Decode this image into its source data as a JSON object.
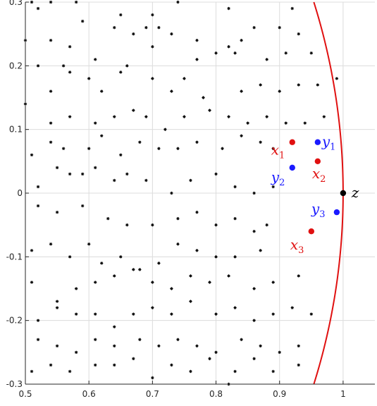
{
  "chart_data": {
    "type": "scatter",
    "title": "",
    "xlabel": "",
    "ylabel": "",
    "xlim": [
      0.5,
      1.05
    ],
    "ylim": [
      -0.3,
      0.3
    ],
    "grid": true,
    "x_ticks": [
      "0.5",
      "0.6",
      "0.7",
      "0.8",
      "0.9",
      "1"
    ],
    "x_tick_values": [
      0.5,
      0.6,
      0.7,
      0.8,
      0.9,
      1.0
    ],
    "y_ticks": [
      "-0.3",
      "-0.2",
      "-0.1",
      "0",
      "0.1",
      "0.2",
      "0.3"
    ],
    "y_tick_values": [
      -0.3,
      -0.2,
      -0.1,
      0,
      0.1,
      0.2,
      0.3
    ],
    "colors": {
      "background_points": "#000000",
      "x_points": "#e01010",
      "y_points": "#1a1aff",
      "z_point": "#000000",
      "curve": "#e01010",
      "grid": "#dcdcdc"
    },
    "curve": {
      "description_kind": "circle-arc",
      "center": [
        0,
        0
      ],
      "radius": 1.0
    },
    "background_points": [
      [
        0.51,
        0.3
      ],
      [
        0.52,
        0.29
      ],
      [
        0.54,
        0.3
      ],
      [
        0.58,
        0.3
      ],
      [
        0.65,
        0.28
      ],
      [
        0.7,
        0.28
      ],
      [
        0.74,
        0.3
      ],
      [
        0.82,
        0.29
      ],
      [
        0.92,
        0.29
      ],
      [
        0.5,
        0.24
      ],
      [
        0.54,
        0.24
      ],
      [
        0.57,
        0.23
      ],
      [
        0.59,
        0.27
      ],
      [
        0.64,
        0.26
      ],
      [
        0.67,
        0.25
      ],
      [
        0.69,
        0.26
      ],
      [
        0.71,
        0.26
      ],
      [
        0.73,
        0.25
      ],
      [
        0.77,
        0.24
      ],
      [
        0.82,
        0.23
      ],
      [
        0.84,
        0.24
      ],
      [
        0.86,
        0.26
      ],
      [
        0.9,
        0.26
      ],
      [
        0.93,
        0.25
      ],
      [
        0.52,
        0.2
      ],
      [
        0.56,
        0.2
      ],
      [
        0.61,
        0.21
      ],
      [
        0.66,
        0.2
      ],
      [
        0.7,
        0.23
      ],
      [
        0.77,
        0.21
      ],
      [
        0.8,
        0.22
      ],
      [
        0.83,
        0.22
      ],
      [
        0.88,
        0.21
      ],
      [
        0.91,
        0.22
      ],
      [
        0.95,
        0.22
      ],
      [
        0.5,
        0.14
      ],
      [
        0.54,
        0.16
      ],
      [
        0.57,
        0.19
      ],
      [
        0.6,
        0.18
      ],
      [
        0.62,
        0.16
      ],
      [
        0.65,
        0.19
      ],
      [
        0.7,
        0.18
      ],
      [
        0.73,
        0.16
      ],
      [
        0.75,
        0.18
      ],
      [
        0.78,
        0.15
      ],
      [
        0.84,
        0.16
      ],
      [
        0.87,
        0.17
      ],
      [
        0.9,
        0.16
      ],
      [
        0.93,
        0.17
      ],
      [
        0.96,
        0.17
      ],
      [
        0.99,
        0.18
      ],
      [
        0.54,
        0.11
      ],
      [
        0.57,
        0.12
      ],
      [
        0.61,
        0.11
      ],
      [
        0.64,
        0.12
      ],
      [
        0.67,
        0.13
      ],
      [
        0.69,
        0.12
      ],
      [
        0.72,
        0.1
      ],
      [
        0.75,
        0.12
      ],
      [
        0.79,
        0.13
      ],
      [
        0.82,
        0.12
      ],
      [
        0.85,
        0.11
      ],
      [
        0.88,
        0.12
      ],
      [
        0.91,
        0.11
      ],
      [
        0.94,
        0.11
      ],
      [
        0.97,
        0.12
      ],
      [
        0.51,
        0.06
      ],
      [
        0.54,
        0.08
      ],
      [
        0.56,
        0.07
      ],
      [
        0.6,
        0.07
      ],
      [
        0.62,
        0.09
      ],
      [
        0.65,
        0.06
      ],
      [
        0.68,
        0.08
      ],
      [
        0.71,
        0.07
      ],
      [
        0.74,
        0.07
      ],
      [
        0.77,
        0.08
      ],
      [
        0.81,
        0.07
      ],
      [
        0.84,
        0.09
      ],
      [
        0.87,
        0.08
      ],
      [
        0.89,
        0.07
      ],
      [
        0.52,
        0.01
      ],
      [
        0.55,
        0.04
      ],
      [
        0.57,
        0.03
      ],
      [
        0.59,
        0.03
      ],
      [
        0.61,
        0.04
      ],
      [
        0.64,
        0.02
      ],
      [
        0.66,
        0.03
      ],
      [
        0.69,
        0.02
      ],
      [
        0.73,
        0.0
      ],
      [
        0.76,
        0.02
      ],
      [
        0.8,
        0.03
      ],
      [
        0.83,
        0.01
      ],
      [
        0.86,
        0.0
      ],
      [
        0.89,
        0.01
      ],
      [
        0.52,
        -0.02
      ],
      [
        0.55,
        -0.03
      ],
      [
        0.59,
        -0.02
      ],
      [
        0.63,
        -0.04
      ],
      [
        0.66,
        -0.05
      ],
      [
        0.7,
        -0.05
      ],
      [
        0.74,
        -0.04
      ],
      [
        0.77,
        -0.03
      ],
      [
        0.8,
        -0.05
      ],
      [
        0.83,
        -0.04
      ],
      [
        0.86,
        -0.06
      ],
      [
        0.88,
        -0.05
      ],
      [
        0.51,
        -0.09
      ],
      [
        0.54,
        -0.08
      ],
      [
        0.57,
        -0.1
      ],
      [
        0.6,
        -0.08
      ],
      [
        0.62,
        -0.11
      ],
      [
        0.65,
        -0.1
      ],
      [
        0.68,
        -0.12
      ],
      [
        0.71,
        -0.11
      ],
      [
        0.74,
        -0.08
      ],
      [
        0.77,
        -0.09
      ],
      [
        0.8,
        -0.1
      ],
      [
        0.83,
        -0.1
      ],
      [
        0.87,
        -0.09
      ],
      [
        0.51,
        -0.14
      ],
      [
        0.55,
        -0.17
      ],
      [
        0.58,
        -0.15
      ],
      [
        0.61,
        -0.14
      ],
      [
        0.64,
        -0.13
      ],
      [
        0.67,
        -0.12
      ],
      [
        0.7,
        -0.14
      ],
      [
        0.73,
        -0.15
      ],
      [
        0.76,
        -0.13
      ],
      [
        0.79,
        -0.14
      ],
      [
        0.82,
        -0.13
      ],
      [
        0.86,
        -0.15
      ],
      [
        0.89,
        -0.14
      ],
      [
        0.93,
        -0.13
      ],
      [
        0.52,
        -0.2
      ],
      [
        0.55,
        -0.18
      ],
      [
        0.58,
        -0.19
      ],
      [
        0.61,
        -0.19
      ],
      [
        0.64,
        -0.21
      ],
      [
        0.67,
        -0.19
      ],
      [
        0.7,
        -0.18
      ],
      [
        0.73,
        -0.19
      ],
      [
        0.76,
        -0.17
      ],
      [
        0.8,
        -0.19
      ],
      [
        0.83,
        -0.18
      ],
      [
        0.86,
        -0.2
      ],
      [
        0.89,
        -0.19
      ],
      [
        0.92,
        -0.18
      ],
      [
        0.95,
        -0.19
      ],
      [
        0.52,
        -0.23
      ],
      [
        0.55,
        -0.24
      ],
      [
        0.58,
        -0.25
      ],
      [
        0.61,
        -0.23
      ],
      [
        0.64,
        -0.24
      ],
      [
        0.68,
        -0.23
      ],
      [
        0.71,
        -0.24
      ],
      [
        0.74,
        -0.23
      ],
      [
        0.77,
        -0.24
      ],
      [
        0.8,
        -0.25
      ],
      [
        0.84,
        -0.23
      ],
      [
        0.87,
        -0.24
      ],
      [
        0.9,
        -0.25
      ],
      [
        0.93,
        -0.24
      ],
      [
        0.51,
        -0.28
      ],
      [
        0.54,
        -0.27
      ],
      [
        0.57,
        -0.28
      ],
      [
        0.61,
        -0.27
      ],
      [
        0.64,
        -0.27
      ],
      [
        0.67,
        -0.26
      ],
      [
        0.7,
        -0.29
      ],
      [
        0.73,
        -0.27
      ],
      [
        0.76,
        -0.28
      ],
      [
        0.79,
        -0.26
      ],
      [
        0.83,
        -0.28
      ],
      [
        0.86,
        -0.26
      ],
      [
        0.89,
        -0.28
      ],
      [
        0.93,
        -0.27
      ],
      [
        0.82,
        -0.3
      ]
    ],
    "labeled_points": [
      {
        "name": "x1",
        "base": "x",
        "sub": "1",
        "x": 0.92,
        "y": 0.08,
        "color_key": "x_points",
        "label_dx": -30,
        "label_dy": 18
      },
      {
        "name": "x2",
        "base": "x",
        "sub": "2",
        "x": 0.96,
        "y": 0.05,
        "color_key": "x_points",
        "label_dx": -8,
        "label_dy": 24
      },
      {
        "name": "x3",
        "base": "x",
        "sub": "3",
        "x": 0.95,
        "y": -0.06,
        "color_key": "x_points",
        "label_dx": -30,
        "label_dy": 26
      },
      {
        "name": "y1",
        "base": "y",
        "sub": "1",
        "x": 0.96,
        "y": 0.08,
        "color_key": "y_points",
        "label_dx": 6,
        "label_dy": 6
      },
      {
        "name": "y2",
        "base": "y",
        "sub": "2",
        "x": 0.92,
        "y": 0.04,
        "color_key": "y_points",
        "label_dx": -30,
        "label_dy": 20
      },
      {
        "name": "y3",
        "base": "y",
        "sub": "3",
        "x": 0.99,
        "y": -0.03,
        "color_key": "y_points",
        "label_dx": -36,
        "label_dy": 2
      },
      {
        "name": "z",
        "base": "z",
        "sub": "",
        "x": 1.0,
        "y": 0.0,
        "color_key": "z_point",
        "label_dx": 12,
        "label_dy": 6
      }
    ]
  }
}
